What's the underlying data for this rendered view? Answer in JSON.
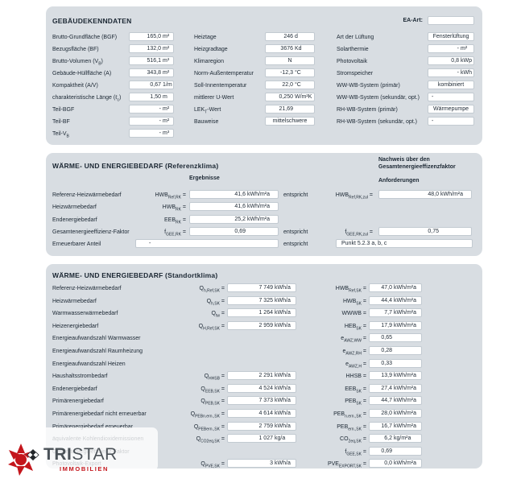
{
  "panel1": {
    "title": "GEBÄUDEKENNDATEN",
    "ea_art": {
      "label": "EA-Art:",
      "value": ""
    },
    "col1": [
      {
        "label": "Brutto-Grundfläche (BGF)",
        "value": "165,0",
        "unit": "m²"
      },
      {
        "label": "Bezugsfläche (BF)",
        "value": "132,0",
        "unit": "m²"
      },
      {
        "label": "Brutto-Volumen (V",
        "label_sub": "B",
        "label_post": ")",
        "value": "516,1",
        "unit": "m³"
      },
      {
        "label": "Gebäude-Hüllfläche (A)",
        "value": "343,8",
        "unit": "m²"
      },
      {
        "label": "Kompaktheit (A/V)",
        "value": "0,67",
        "unit": "1/m"
      },
      {
        "label": "charakteristische Länge (ℓ",
        "label_sub": "c",
        "label_post": ")",
        "value": "1,50",
        "unit": "m"
      },
      {
        "label": "Teil-BGF",
        "value": "-",
        "unit": "m²"
      },
      {
        "label": "Teil-BF",
        "value": "-",
        "unit": "m²"
      },
      {
        "label": "Teil-V",
        "label_sub": "B",
        "value": "-",
        "unit": "m³"
      }
    ],
    "col2": [
      {
        "label": "Heiztage",
        "value": "246",
        "unit": "d"
      },
      {
        "label": "Heizgradtage",
        "value": "3676",
        "unit": "Kd"
      },
      {
        "label": "Klimaregion",
        "value": "N",
        "unit": "",
        "align": "center"
      },
      {
        "label": "Norm-Außentemperatur",
        "value": "-12,3",
        "unit": "°C"
      },
      {
        "label": "Soll-Innentemperatur",
        "value": "22,0",
        "unit": "°C"
      },
      {
        "label": "mittlerer U-Wert",
        "value": "0,250",
        "unit": "W/m²K"
      },
      {
        "label": "LEK",
        "label_sub": "T",
        "label_post": "-Wert",
        "value": "21,69",
        "unit": ""
      },
      {
        "label": "Bauweise",
        "value": "mittelschwere",
        "unit": "",
        "align": "center"
      }
    ],
    "col3": [
      {
        "label": "Art der Lüftung",
        "value": "Fensterlüftung",
        "unit": "",
        "align": "center"
      },
      {
        "label": "Solarthermie",
        "value": "-",
        "unit": "m²"
      },
      {
        "label": "Photovoltaik",
        "value": "0,8",
        "unit": "kWp"
      },
      {
        "label": "Stromspeicher",
        "value": "-",
        "unit": "kWh"
      },
      {
        "label": "WW-WB-System (primär)",
        "value": "kombiniert",
        "unit": "",
        "align": "center"
      },
      {
        "label": "WW-WB-System (sekundär, opt.)",
        "value": "-",
        "unit": "",
        "align": "left"
      },
      {
        "label": "RH-WB-System (primär)",
        "value": "Wärmepumpe",
        "unit": "",
        "align": "center"
      },
      {
        "label": "RH-WB-System (sekundär, opt.)",
        "value": "-",
        "unit": "",
        "align": "left"
      }
    ]
  },
  "panel2": {
    "title": "WÄRME- UND ENERGIEBEDARF (Referenzklima)",
    "results_header": "Ergebnisse",
    "proof_header_line1": "Nachweis über den",
    "proof_header_line2": "Gesamtenergieeffizenzfaktor",
    "requirements_header": "Anforderungen",
    "rows": [
      {
        "label": "Referenz-Heizwärmebedarf",
        "sym": "HWB",
        "sym_sub": "Ref,RK",
        "eq": " =",
        "value": "41,6",
        "unit": "kWh/m²a",
        "entspricht": "entspricht",
        "rsym": "HWB",
        "rsym_sub": "Ref,RK,zul",
        "req": " =",
        "rvalue": "48,0",
        "runit": "kWh/m²a"
      },
      {
        "label": "Heizwärmebedarf",
        "sym": "HWB",
        "sym_sub": "RK",
        "eq": " =",
        "value": "41,6",
        "unit": "kWh/m²a"
      },
      {
        "label": "Endenergiebedarf",
        "sym": "EEB",
        "sym_sub": "RK",
        "eq": " =",
        "value": "25,2",
        "unit": "kWh/m²a"
      },
      {
        "label": "Gesamtenergieeffizienz-Faktor",
        "sym": "f",
        "sym_sub": "GEE,RK",
        "eq": " =",
        "value": "0,69",
        "unit": "",
        "entspricht": "entspricht",
        "rsym": "f",
        "rsym_sub": "GEE,RK,zul",
        "req": " =",
        "rvalue": "0,75",
        "runit": ""
      },
      {
        "label": "Erneuerbarer Anteil",
        "wide_value": "-",
        "entspricht": "entspricht",
        "rbox_text": "Punkt 5.2.3 a, b, c"
      }
    ]
  },
  "panel3": {
    "title": "WÄRME- UND ENERGIEBEDARF (Standortklima)",
    "rows": [
      {
        "label": "Referenz-Heizwärmebedarf",
        "sym": "Q",
        "sym_sub": "h,Ref,SK",
        "eq": " =",
        "value": "7 749",
        "unit": "kWh/a",
        "rsym": "HWB",
        "rsym_sub": "Ref,SK",
        "req": " =",
        "rvalue": "47,0",
        "runit": "kWh/m²a"
      },
      {
        "label": "Heizwärmebedarf",
        "sym": "Q",
        "sym_sub": "h,SK",
        "eq": " =",
        "value": "7 325",
        "unit": "kWh/a",
        "rsym": "HWB",
        "rsym_sub": "SK",
        "req": " =",
        "rvalue": "44,4",
        "runit": "kWh/m²a"
      },
      {
        "label": "Warmwasserwärmebedarf",
        "sym": "Q",
        "sym_sub": "tw",
        "eq": " =",
        "value": "1 264",
        "unit": "kWh/a",
        "rsym": "WWWB",
        "rsym_sub": "",
        "req": " =",
        "rvalue": "7,7",
        "runit": "kWh/m²a"
      },
      {
        "label": "Heizenergiebedarf",
        "sym": "Q",
        "sym_sub": "H,Ref,SK",
        "eq": " =",
        "value": "2 959",
        "unit": "kWh/a",
        "rsym": "HEB",
        "rsym_sub": "SK",
        "req": " =",
        "rvalue": "17,9",
        "runit": "kWh/m²a"
      },
      {
        "label": "Energieaufwandszahl Warmwasser",
        "rsym": "e",
        "rsym_sub": "AWZ,WW",
        "req": " =",
        "rvalue": "0,65",
        "runit": ""
      },
      {
        "label": "Energieaufwandszahl Raumheizung",
        "rsym": "e",
        "rsym_sub": "AWZ,RH",
        "req": " =",
        "rvalue": "0,28",
        "runit": ""
      },
      {
        "label": "Energieaufwandszahl Heizen",
        "rsym": "e",
        "rsym_sub": "AWZ,H",
        "req": " =",
        "rvalue": "0,33",
        "runit": ""
      },
      {
        "label": "Haushaltsstrombedarf",
        "sym": "Q",
        "sym_sub": "HHSB",
        "eq": " =",
        "value": "2 291",
        "unit": "kWh/a",
        "rsym": "HHSB",
        "rsym_sub": "",
        "req": " =",
        "rvalue": "13,9",
        "runit": "kWh/m²a"
      },
      {
        "label": "Endenergiebedarf",
        "sym": "Q",
        "sym_sub": "EEB,SK",
        "eq": " =",
        "value": "4 524",
        "unit": "kWh/a",
        "rsym": "EEB",
        "rsym_sub": "SK",
        "req": " =",
        "rvalue": "27,4",
        "runit": "kWh/m²a"
      },
      {
        "label": "Primärenergiebedarf",
        "sym": "Q",
        "sym_sub": "PEB,SK",
        "eq": " =",
        "value": "7 373",
        "unit": "kWh/a",
        "rsym": "PEB",
        "rsym_sub": "SK",
        "req": " =",
        "rvalue": "44,7",
        "runit": "kWh/m²a"
      },
      {
        "label": "Primärenergiebedarf nicht erneuerbar",
        "sym": "Q",
        "sym_sub": "PEBn.ern.,SK",
        "eq": " =",
        "value": "4 614",
        "unit": "kWh/a",
        "rsym": "PEB",
        "rsym_sub": "n.ern.,SK",
        "req": " =",
        "rvalue": "28,0",
        "runit": "kWh/m²a"
      },
      {
        "label": "Primärenergiebedarf erneuerbar",
        "sym": "Q",
        "sym_sub": "PEBern.,SK",
        "eq": " =",
        "value": "2 759",
        "unit": "kWh/a",
        "rsym": "PEB",
        "rsym_sub": "ern.,SK",
        "req": " =",
        "rvalue": "16,7",
        "runit": "kWh/m²a"
      },
      {
        "label": "äquivalente Kohlendioxidemissionen",
        "sym": "Q",
        "sym_sub": "CO2eq,SK",
        "eq": " =",
        "value": "1 027",
        "unit": "kg/a",
        "rsym": "CO",
        "rsym_sub": "2eq,SK",
        "req": " =",
        "rvalue": "6,2",
        "runit": "kg/m²a"
      },
      {
        "label": "Gesamtenergieeffizienz-Faktor",
        "rsym": "f",
        "rsym_sub": "GEE,SK",
        "req": " =",
        "rvalue": "0,69",
        "runit": ""
      },
      {
        "label": "Photovoltaik-Export",
        "sym": "Q",
        "sym_sub": "PVE,SK",
        "eq": " =",
        "value": "3",
        "unit": "kWh/a",
        "rsym": "PVE",
        "rsym_sub": "EXPORT,SK",
        "req": " =",
        "rvalue": "0,0",
        "runit": "kWh/m²a"
      }
    ]
  },
  "logo": {
    "name_part1": "TRI",
    "name_part2": "STAR",
    "tagline": "IMMOBILIEN"
  },
  "colors": {
    "panel_bg": "#d8dde2",
    "text": "#1b2733",
    "logo_red": "#c4161c",
    "logo_gray": "#4b5258"
  }
}
